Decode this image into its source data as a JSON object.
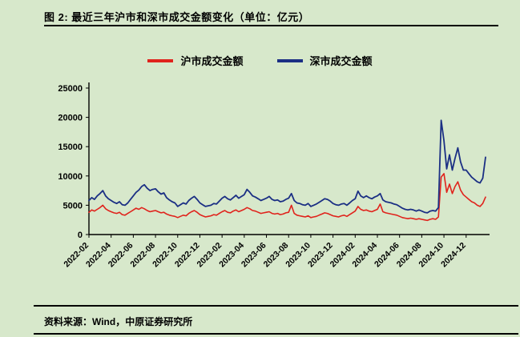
{
  "header": {
    "title": "图 2: 最近三年沪市和深市成交金额变化（单位：亿元）"
  },
  "footer": {
    "source": "资料来源：Wind，中原证券研究所"
  },
  "colors": {
    "background": "#d7e8cb",
    "axis": "#000000",
    "shanghai_red": "#e0231c",
    "shenzhen_blue": "#1b2f84"
  },
  "chart_data": {
    "type": "line",
    "title": "最近三年沪市和深市成交金额变化",
    "unit": "亿元",
    "ylim": [
      0,
      25000
    ],
    "y_ticks": [
      0,
      5000,
      10000,
      15000,
      20000,
      25000
    ],
    "x_tick_labels": [
      "2022-02",
      "2022-04",
      "2022-06",
      "2022-08",
      "2022-10",
      "2022-12",
      "2023-02",
      "2023-04",
      "2023-06",
      "2023-08",
      "2023-10",
      "2023-12",
      "2024-02",
      "2024-04",
      "2024-06",
      "2024-08",
      "2024-10",
      "2024-12"
    ],
    "x_tick_month_indices": [
      0,
      2,
      4,
      6,
      8,
      10,
      12,
      14,
      16,
      18,
      20,
      22,
      24,
      26,
      28,
      30,
      32,
      34
    ],
    "points_per_month": 4,
    "grid": false,
    "legend_position": "top",
    "series": [
      {
        "name": "沪市成交金额",
        "color": "#e0231c",
        "values": [
          3800,
          4200,
          4000,
          4300,
          4600,
          5000,
          4400,
          4100,
          3900,
          3700,
          3600,
          3800,
          3400,
          3300,
          3600,
          3900,
          4200,
          4500,
          4300,
          4600,
          4400,
          4100,
          3900,
          4000,
          4100,
          3900,
          3700,
          3800,
          3500,
          3300,
          3200,
          3100,
          2900,
          3100,
          3300,
          3200,
          3600,
          3900,
          4100,
          3800,
          3400,
          3200,
          3000,
          3100,
          3200,
          3400,
          3300,
          3600,
          3900,
          4100,
          3800,
          3700,
          4000,
          4200,
          3900,
          4100,
          4300,
          4600,
          4400,
          4100,
          4000,
          3800,
          3600,
          3700,
          3800,
          3900,
          3600,
          3500,
          3600,
          3400,
          3500,
          3700,
          3800,
          5000,
          3600,
          3300,
          3200,
          3100,
          3000,
          3200,
          2900,
          3000,
          3100,
          3300,
          3500,
          3700,
          3600,
          3400,
          3200,
          3100,
          3000,
          3200,
          3300,
          3100,
          3400,
          3700,
          4000,
          4800,
          4300,
          4100,
          4200,
          4000,
          3900,
          4100,
          4300,
          5200,
          3900,
          3700,
          3600,
          3500,
          3400,
          3300,
          3100,
          2900,
          2800,
          2700,
          2800,
          2700,
          2600,
          2700,
          2600,
          2500,
          2400,
          2600,
          2700,
          2600,
          3000,
          9800,
          10400,
          7200,
          8600,
          7000,
          8200,
          9000,
          7600,
          6800,
          6400,
          6000,
          5600,
          5400,
          5000,
          4800,
          5300,
          6400
        ]
      },
      {
        "name": "深市成交金额",
        "color": "#1b2f84",
        "values": [
          5800,
          6300,
          6000,
          6600,
          7000,
          7500,
          6600,
          6100,
          5800,
          5500,
          5300,
          5600,
          5100,
          5000,
          5400,
          6000,
          6600,
          7200,
          7600,
          8200,
          8500,
          7900,
          7500,
          7700,
          7800,
          7300,
          6900,
          7100,
          6300,
          5900,
          5600,
          5400,
          4800,
          5100,
          5400,
          5200,
          5800,
          6200,
          6500,
          6000,
          5400,
          5100,
          4800,
          4900,
          5000,
          5300,
          5200,
          5700,
          6200,
          6500,
          6100,
          5900,
          6300,
          6700,
          6200,
          6500,
          6800,
          7700,
          7200,
          6600,
          6400,
          6100,
          5800,
          6000,
          6200,
          6500,
          6000,
          5800,
          5900,
          5600,
          5700,
          6000,
          6200,
          7000,
          5800,
          5400,
          5300,
          5100,
          5000,
          5300,
          4800,
          5000,
          5200,
          5500,
          5800,
          6100,
          6000,
          5700,
          5300,
          5100,
          5000,
          5200,
          5300,
          5000,
          5400,
          5800,
          6100,
          7400,
          6600,
          6300,
          6600,
          6300,
          6100,
          6400,
          6600,
          7000,
          5900,
          5600,
          5500,
          5400,
          5200,
          5100,
          4800,
          4500,
          4300,
          4200,
          4300,
          4200,
          4000,
          4200,
          4000,
          3800,
          3700,
          4000,
          4100,
          4000,
          4600,
          19500,
          16000,
          11200,
          13600,
          11000,
          13000,
          14800,
          12400,
          11000,
          11000,
          10400,
          9800,
          9400,
          9000,
          8800,
          9600,
          13200
        ]
      }
    ]
  }
}
